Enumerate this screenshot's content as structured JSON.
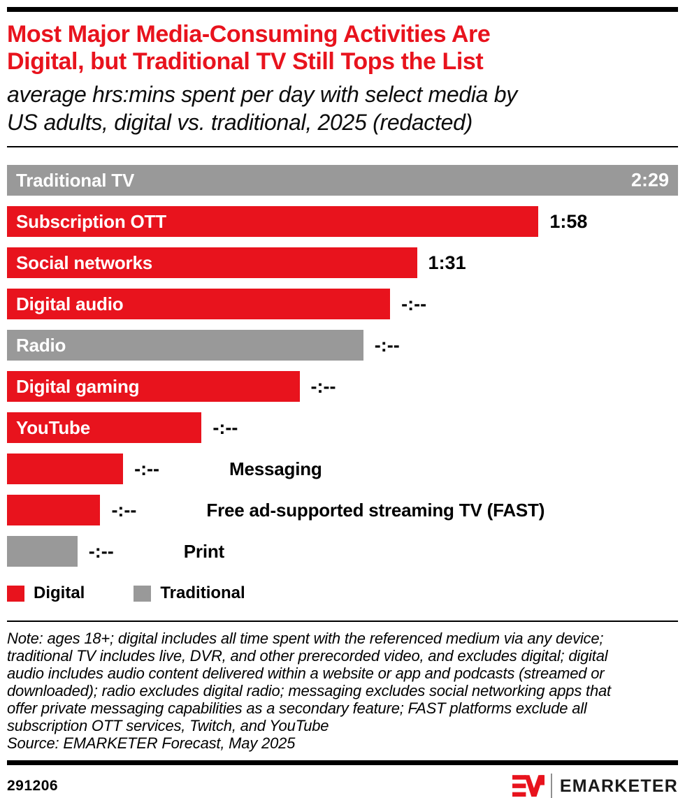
{
  "colors": {
    "red": "#e8131d",
    "gray": "#999999",
    "black": "#000000"
  },
  "header": {
    "title_lines": [
      "Most Major Media-Consuming Activities Are",
      "Digital, but Traditional TV Still Tops the List"
    ],
    "subtitle_lines": [
      "average hrs:mins spent per day with select media by",
      "US adults, digital vs. traditional, 2025 (redacted)"
    ]
  },
  "chart_data": {
    "type": "bar",
    "orientation": "horizontal",
    "value_unit": "hrs:mins spent per day",
    "grid": "off",
    "categories": [
      "Traditional TV",
      "Subscription OTT",
      "Social networks",
      "Digital audio",
      "Radio",
      "Digital gaming",
      "YouTube",
      "Messaging",
      "Free ad-supported streaming TV (FAST)",
      "Print"
    ],
    "display_values": [
      "2:29",
      "1:58",
      "1:31",
      "-:--",
      "-:--",
      "-:--",
      "-:--",
      "-:--",
      "-:--",
      "-:--"
    ],
    "rows": [
      {
        "label": "Traditional TV",
        "group": "Traditional",
        "color": "#999999",
        "value_label": "2:29",
        "bar_pct": 100,
        "value_placement": "inside",
        "label_placement": "inside"
      },
      {
        "label": "Subscription OTT",
        "group": "Digital",
        "color": "#e8131d",
        "value_label": "1:58",
        "bar_pct": 79.2,
        "value_placement": "outside",
        "label_placement": "inside"
      },
      {
        "label": "Social networks",
        "group": "Digital",
        "color": "#e8131d",
        "value_label": "1:31",
        "bar_pct": 61.1,
        "value_placement": "outside",
        "label_placement": "inside"
      },
      {
        "label": "Digital audio",
        "group": "Digital",
        "color": "#e8131d",
        "value_label": "-:--",
        "bar_pct": 57.1,
        "value_placement": "outside",
        "label_placement": "inside"
      },
      {
        "label": "Radio",
        "group": "Traditional",
        "color": "#999999",
        "value_label": "-:--",
        "bar_pct": 53.1,
        "value_placement": "outside",
        "label_placement": "inside"
      },
      {
        "label": "Digital gaming",
        "group": "Digital",
        "color": "#e8131d",
        "value_label": "-:--",
        "bar_pct": 43.6,
        "value_placement": "outside",
        "label_placement": "inside"
      },
      {
        "label": "YouTube",
        "group": "Digital",
        "color": "#e8131d",
        "value_label": "-:--",
        "bar_pct": 29.0,
        "value_placement": "outside",
        "label_placement": "inside"
      },
      {
        "label": "Messaging",
        "group": "Digital",
        "color": "#e8131d",
        "value_label": "-:--",
        "bar_pct": 17.3,
        "value_placement": "outside",
        "label_placement": "outside"
      },
      {
        "label": "Free ad-supported streaming TV (FAST)",
        "group": "Digital",
        "color": "#e8131d",
        "value_label": "-:--",
        "bar_pct": 13.9,
        "value_placement": "outside",
        "label_placement": "outside"
      },
      {
        "label": "Print",
        "group": "Traditional",
        "color": "#999999",
        "value_label": "-:--",
        "bar_pct": 10.5,
        "value_placement": "outside",
        "label_placement": "outside"
      }
    ]
  },
  "legend": {
    "items": [
      {
        "label": "Digital",
        "color": "#e8131d"
      },
      {
        "label": "Traditional",
        "color": "#999999"
      }
    ]
  },
  "note": {
    "lines": [
      "Note: ages 18+; digital includes all time spent with the referenced medium via any device;",
      "traditional TV includes live, DVR, and other prerecorded video, and excludes digital; digital",
      "audio includes audio content delivered within a website or app and podcasts (streamed or",
      "downloaded); radio excludes digital radio; messaging excludes social networking apps that",
      "offer private messaging capabilities as a secondary feature; FAST platforms exclude all",
      "subscription OTT services, Twitch, and YouTube"
    ]
  },
  "source": "Source: EMARKETER Forecast, May 2025",
  "footer": {
    "chart_id": "291206",
    "wordmark": "EMARKETER",
    "logo_mark": "EM"
  }
}
